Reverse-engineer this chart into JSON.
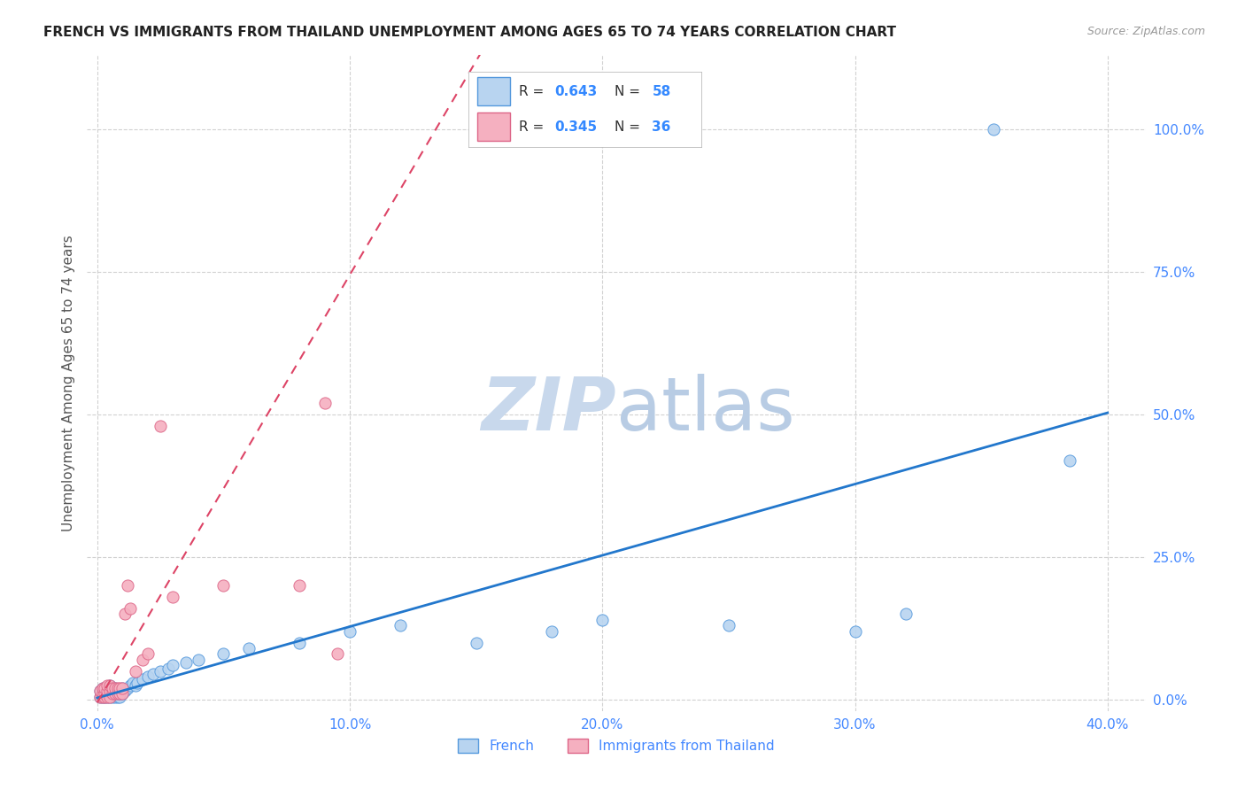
{
  "title": "FRENCH VS IMMIGRANTS FROM THAILAND UNEMPLOYMENT AMONG AGES 65 TO 74 YEARS CORRELATION CHART",
  "source": "Source: ZipAtlas.com",
  "ylabel": "Unemployment Among Ages 65 to 74 years",
  "xlim": [
    -0.004,
    0.415
  ],
  "ylim": [
    -0.02,
    1.13
  ],
  "x_ticks": [
    0.0,
    0.1,
    0.2,
    0.3,
    0.4
  ],
  "y_ticks": [
    0.0,
    0.25,
    0.5,
    0.75,
    1.0
  ],
  "x_tick_labels": [
    "0.0%",
    "10.0%",
    "20.0%",
    "30.0%",
    "40.0%"
  ],
  "y_tick_labels": [
    "0.0%",
    "25.0%",
    "50.0%",
    "75.0%",
    "100.0%"
  ],
  "french_R": 0.643,
  "french_N": 58,
  "thailand_R": 0.345,
  "thailand_N": 36,
  "french_color": "#b8d4f0",
  "thailand_color": "#f5b0c0",
  "french_edge_color": "#5599dd",
  "thailand_edge_color": "#dd6688",
  "french_line_color": "#2277cc",
  "thailand_line_color": "#dd4466",
  "axis_tick_color": "#4488ff",
  "grid_color": "#cccccc",
  "watermark_zip_color": "#c8d8ec",
  "watermark_atlas_color": "#b8cce4",
  "title_color": "#222222",
  "source_color": "#999999",
  "ylabel_color": "#555555",
  "french_x": [
    0.001,
    0.001,
    0.002,
    0.002,
    0.002,
    0.003,
    0.003,
    0.003,
    0.003,
    0.004,
    0.004,
    0.004,
    0.004,
    0.005,
    0.005,
    0.005,
    0.005,
    0.006,
    0.006,
    0.006,
    0.006,
    0.007,
    0.007,
    0.007,
    0.008,
    0.008,
    0.008,
    0.009,
    0.009,
    0.01,
    0.01,
    0.011,
    0.012,
    0.013,
    0.014,
    0.015,
    0.016,
    0.018,
    0.02,
    0.022,
    0.025,
    0.028,
    0.03,
    0.035,
    0.04,
    0.05,
    0.06,
    0.08,
    0.1,
    0.12,
    0.15,
    0.18,
    0.2,
    0.25,
    0.3,
    0.32,
    0.355,
    0.385
  ],
  "french_y": [
    0.005,
    0.015,
    0.005,
    0.01,
    0.02,
    0.005,
    0.008,
    0.012,
    0.02,
    0.005,
    0.008,
    0.012,
    0.02,
    0.005,
    0.01,
    0.015,
    0.025,
    0.005,
    0.01,
    0.015,
    0.02,
    0.005,
    0.01,
    0.02,
    0.005,
    0.01,
    0.015,
    0.005,
    0.01,
    0.01,
    0.02,
    0.015,
    0.02,
    0.025,
    0.03,
    0.025,
    0.03,
    0.035,
    0.04,
    0.045,
    0.05,
    0.055,
    0.06,
    0.065,
    0.07,
    0.08,
    0.09,
    0.1,
    0.12,
    0.13,
    0.1,
    0.12,
    0.14,
    0.13,
    0.12,
    0.15,
    1.0,
    0.42
  ],
  "thailand_x": [
    0.001,
    0.001,
    0.002,
    0.002,
    0.002,
    0.003,
    0.003,
    0.003,
    0.004,
    0.004,
    0.004,
    0.005,
    0.005,
    0.005,
    0.006,
    0.006,
    0.007,
    0.007,
    0.008,
    0.008,
    0.009,
    0.009,
    0.01,
    0.01,
    0.011,
    0.012,
    0.013,
    0.015,
    0.018,
    0.02,
    0.025,
    0.03,
    0.05,
    0.08,
    0.09,
    0.095
  ],
  "thailand_y": [
    0.005,
    0.015,
    0.005,
    0.01,
    0.02,
    0.005,
    0.01,
    0.02,
    0.005,
    0.015,
    0.025,
    0.005,
    0.015,
    0.025,
    0.01,
    0.02,
    0.01,
    0.02,
    0.01,
    0.02,
    0.01,
    0.02,
    0.01,
    0.02,
    0.15,
    0.2,
    0.16,
    0.05,
    0.07,
    0.08,
    0.48,
    0.18,
    0.2,
    0.2,
    0.52,
    0.08
  ],
  "french_line_slope": 1.25,
  "french_line_intercept": 0.003,
  "thailand_line_slope": 7.5,
  "thailand_line_intercept": -0.005
}
